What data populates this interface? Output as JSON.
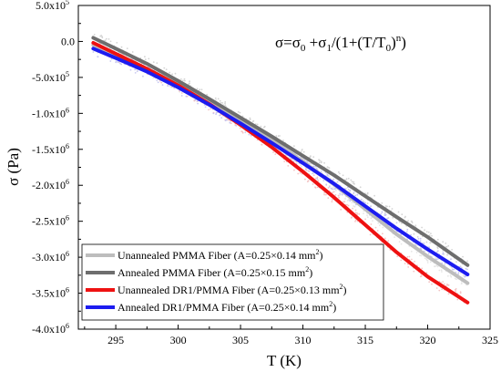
{
  "chart_data": {
    "type": "line",
    "title": "",
    "annotation": "σ=σ0 +σ1/(1+(T/T0)n)",
    "annotation_parts": {
      "lhs": "σ=σ",
      "sub0": "0",
      "mid": " +σ",
      "sub1": "1",
      "slash": "/(1+(T/T",
      "sub2": "0",
      "close": ")",
      "sup": "n",
      "end": ")"
    },
    "xlabel": "T (K)",
    "ylabel": "σ (Pa)",
    "xlim": [
      292,
      325
    ],
    "ylim": [
      -4000000,
      500000
    ],
    "x_ticks": [
      295,
      300,
      305,
      310,
      315,
      320,
      325
    ],
    "x_tick_labels": [
      "295",
      "300",
      "305",
      "310",
      "315",
      "320",
      "325"
    ],
    "y_ticks": [
      500000,
      0,
      -500000,
      -1000000,
      -1500000,
      -2000000,
      -2500000,
      -3000000,
      -3500000,
      -4000000
    ],
    "y_tick_labels": [
      {
        "m": "5.0x10",
        "e": "5"
      },
      {
        "m": "0.0",
        "e": ""
      },
      {
        "m": "-5.0x10",
        "e": "5"
      },
      {
        "m": "-1.0x10",
        "e": "6"
      },
      {
        "m": "-1.5x10",
        "e": "6"
      },
      {
        "m": "-2.0x10",
        "e": "6"
      },
      {
        "m": "-2.5x10",
        "e": "6"
      },
      {
        "m": "-3.0x10",
        "e": "6"
      },
      {
        "m": "-3.5x10",
        "e": "6"
      },
      {
        "m": "-4.0x10",
        "e": "6"
      }
    ],
    "grid": false,
    "legend_position": "bottom-left",
    "series": [
      {
        "name": "Unannealed PMMA Fiber (A=0.25×0.14 mm²)",
        "label_main": "Unannealed PMMA Fiber (A=0.25×0.14 mm",
        "label_sup": "2",
        "label_end": ")",
        "color": "#bdbdbd",
        "x": [
          293.2,
          295,
          297.5,
          300,
          302.5,
          305,
          307.5,
          310,
          312.5,
          315,
          317.5,
          320,
          323.2
        ],
        "y": [
          -50000,
          -190000,
          -380000,
          -600000,
          -840000,
          -1100000,
          -1370000,
          -1670000,
          -1990000,
          -2330000,
          -2680000,
          -2990000,
          -3360000
        ]
      },
      {
        "name": "Annealed PMMA Fiber (A=0.25×0.15 mm²)",
        "label_main": "Annealed PMMA Fiber (A=0.25×0.15 mm",
        "label_sup": "2",
        "label_end": ")",
        "color": "#6e6e6e",
        "x": [
          293.2,
          295,
          297.5,
          300,
          302.5,
          305,
          307.5,
          310,
          312.5,
          315,
          317.5,
          320,
          323.2
        ],
        "y": [
          50000,
          -100000,
          -310000,
          -550000,
          -800000,
          -1060000,
          -1320000,
          -1590000,
          -1860000,
          -2150000,
          -2440000,
          -2720000,
          -3110000
        ]
      },
      {
        "name": "Unannealed DR1/PMMA Fiber (A=0.25×0.13 mm²)",
        "label_main": "Unannealed DR1/PMMA Fiber (A=0.25×0.13 mm",
        "label_sup": "2",
        "label_end": ")",
        "color": "#ee1111",
        "x": [
          293.2,
          295,
          297.5,
          300,
          302.5,
          305,
          307.5,
          310,
          312.5,
          315,
          317.5,
          320,
          323.2
        ],
        "y": [
          -20000,
          -170000,
          -380000,
          -610000,
          -870000,
          -1160000,
          -1470000,
          -1810000,
          -2170000,
          -2550000,
          -2930000,
          -3270000,
          -3630000
        ]
      },
      {
        "name": "Annealed DR1/PMMA Fiber (A=0.25×0.14 mm²)",
        "label_main": "Annealed DR1/PMMA Fiber (A=0.25×0.14 mm",
        "label_sup": "2",
        "label_end": ")",
        "color": "#1c1cf0",
        "x": [
          293.2,
          295,
          297.5,
          300,
          302.5,
          305,
          307.5,
          310,
          312.5,
          315,
          317.5,
          320,
          323.2
        ],
        "y": [
          -100000,
          -230000,
          -420000,
          -640000,
          -880000,
          -1140000,
          -1410000,
          -1690000,
          -1980000,
          -2290000,
          -2600000,
          -2890000,
          -3240000
        ]
      }
    ]
  }
}
